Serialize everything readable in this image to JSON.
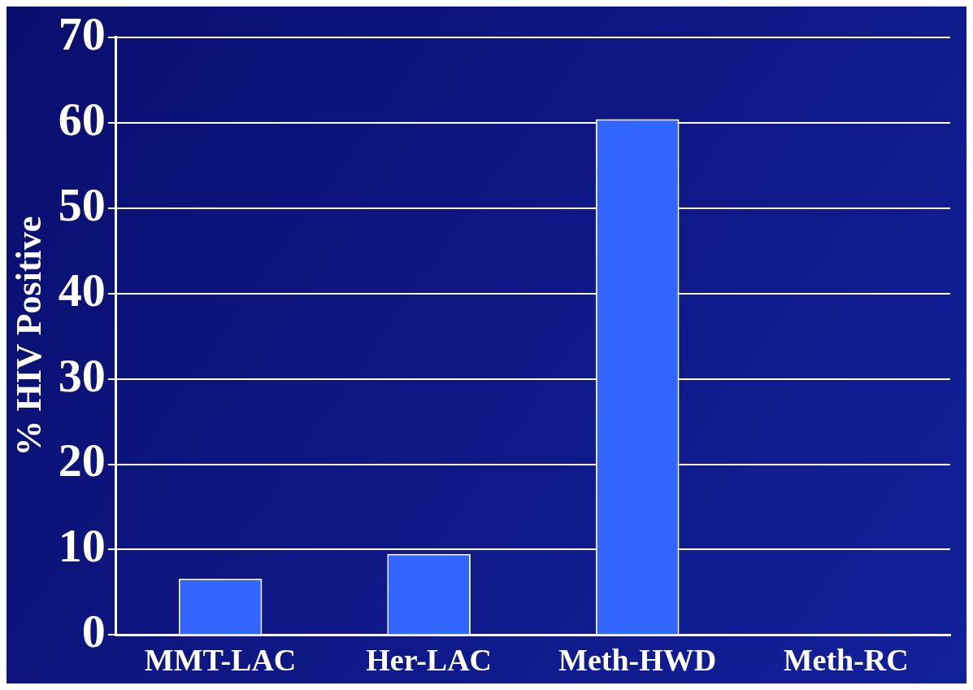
{
  "chart_data": {
    "type": "bar",
    "ylabel": "% HIV Positive",
    "categories": [
      "MMT-LAC",
      "Her-LAC",
      "Meth-HWD",
      "Meth-RC"
    ],
    "values": [
      6.6,
      9.5,
      60.4,
      0
    ],
    "color": "#3366ff",
    "ylim": [
      0,
      70
    ],
    "yticks": [
      0,
      10,
      20,
      30,
      40,
      50,
      60,
      70
    ],
    "grid": "y",
    "legend": false
  }
}
